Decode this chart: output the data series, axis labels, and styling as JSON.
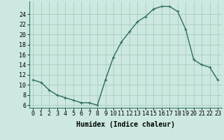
{
  "x": [
    0,
    1,
    2,
    3,
    4,
    5,
    6,
    7,
    8,
    9,
    10,
    11,
    12,
    13,
    14,
    15,
    16,
    17,
    18,
    19,
    20,
    21,
    22,
    23
  ],
  "y": [
    11,
    10.5,
    9,
    8,
    7.5,
    7,
    6.5,
    6.5,
    6,
    11,
    15.5,
    18.5,
    20.5,
    22.5,
    23.5,
    25,
    25.5,
    25.5,
    24.5,
    21,
    15,
    14,
    13.5,
    11
  ],
  "line_color": "#2e6b5e",
  "marker": "+",
  "marker_size": 3.5,
  "bg_color": "#cce8e0",
  "grid_color": "#aaccbf",
  "xlabel": "Humidex (Indice chaleur)",
  "xlim": [
    -0.5,
    23.5
  ],
  "ylim": [
    5.5,
    26.5
  ],
  "yticks": [
    6,
    8,
    10,
    12,
    14,
    16,
    18,
    20,
    22,
    24
  ],
  "xticks": [
    0,
    1,
    2,
    3,
    4,
    5,
    6,
    7,
    8,
    9,
    10,
    11,
    12,
    13,
    14,
    15,
    16,
    17,
    18,
    19,
    20,
    21,
    22,
    23
  ],
  "xtick_labels": [
    "0",
    "1",
    "2",
    "3",
    "4",
    "5",
    "6",
    "7",
    "8",
    "9",
    "10",
    "11",
    "12",
    "13",
    "14",
    "15",
    "16",
    "17",
    "18",
    "19",
    "20",
    "21",
    "22",
    "23"
  ],
  "xlabel_fontsize": 7,
  "tick_fontsize": 6,
  "line_width": 1.0,
  "marker_edge_width": 0.8
}
